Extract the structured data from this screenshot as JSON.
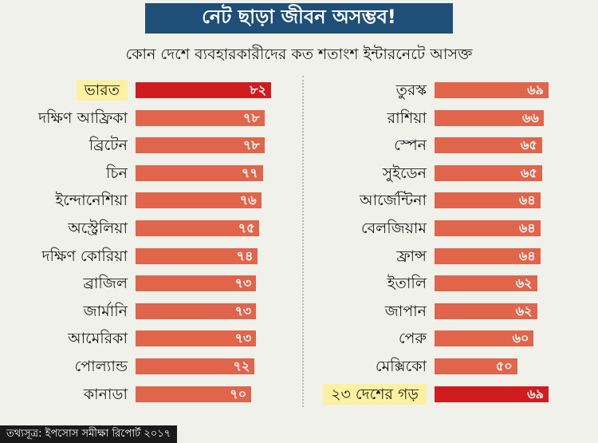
{
  "title": "নেট ছাড়া জীবন অসম্ভব!",
  "subtitle": "কোন দেশে ব্যবহারকারীদের কত শতাংশ ইন্টারনেটে আসক্ত",
  "source": "তথ্যসূত্র: ইপসোস সমীক্ষা রিপোর্ট ২০১৭",
  "colors": {
    "bar": "#e0654b",
    "highlight_bar": "#cf1d1f",
    "highlight_label_bg": "#fbf1a0",
    "title_bg": "#1d4f78"
  },
  "chart_data": {
    "type": "bar",
    "orientation": "horizontal",
    "title": "নেট ছাড়া জীবন অসম্ভব!",
    "subtitle": "কোন দেশে ব্যবহারকারীদের কত শতাংশ ইন্টারনেটে আসক্ত",
    "xlim": [
      0,
      82
    ],
    "left": [
      {
        "category": "ভারত",
        "value": 82,
        "value_label": "৮২",
        "highlight": true
      },
      {
        "category": "দক্ষিণ আফ্রিকা",
        "value": 78,
        "value_label": "৭৮"
      },
      {
        "category": "ব্রিটেন",
        "value": 78,
        "value_label": "৭৮"
      },
      {
        "category": "চিন",
        "value": 77,
        "value_label": "৭৭"
      },
      {
        "category": "ইন্দোনেশিয়া",
        "value": 76,
        "value_label": "৭৬"
      },
      {
        "category": "অস্ট্রেলিয়া",
        "value": 75,
        "value_label": "৭৫"
      },
      {
        "category": "দক্ষিণ কোরিয়া",
        "value": 74,
        "value_label": "৭৪"
      },
      {
        "category": "ব্রাজিল",
        "value": 73,
        "value_label": "৭৩"
      },
      {
        "category": "জার্মানি",
        "value": 73,
        "value_label": "৭৩"
      },
      {
        "category": "আমেরিকা",
        "value": 73,
        "value_label": "৭৩"
      },
      {
        "category": "পোল্যান্ড",
        "value": 72,
        "value_label": "৭২"
      },
      {
        "category": "কানাডা",
        "value": 70,
        "value_label": "৭০"
      }
    ],
    "right": [
      {
        "category": "তুরস্ক",
        "value": 69,
        "value_label": "৬৯"
      },
      {
        "category": "রাশিয়া",
        "value": 66,
        "value_label": "৬৬"
      },
      {
        "category": "স্পেন",
        "value": 65,
        "value_label": "৬৫"
      },
      {
        "category": "সুইডেন",
        "value": 65,
        "value_label": "৬৫"
      },
      {
        "category": "আর্জেন্টিনা",
        "value": 64,
        "value_label": "৬৪"
      },
      {
        "category": "বেলজিয়াম",
        "value": 64,
        "value_label": "৬৪"
      },
      {
        "category": "ফ্রান্স",
        "value": 64,
        "value_label": "৬৪"
      },
      {
        "category": "ইতালি",
        "value": 62,
        "value_label": "৬২"
      },
      {
        "category": "জাপান",
        "value": 62,
        "value_label": "৬২"
      },
      {
        "category": "পেরু",
        "value": 60,
        "value_label": "৬০"
      },
      {
        "category": "মেক্সিকো",
        "value": 50,
        "value_label": "৫০"
      },
      {
        "category": "২৩ দেশের গড়",
        "value": 69,
        "value_label": "৬৯",
        "highlight": true
      }
    ]
  }
}
